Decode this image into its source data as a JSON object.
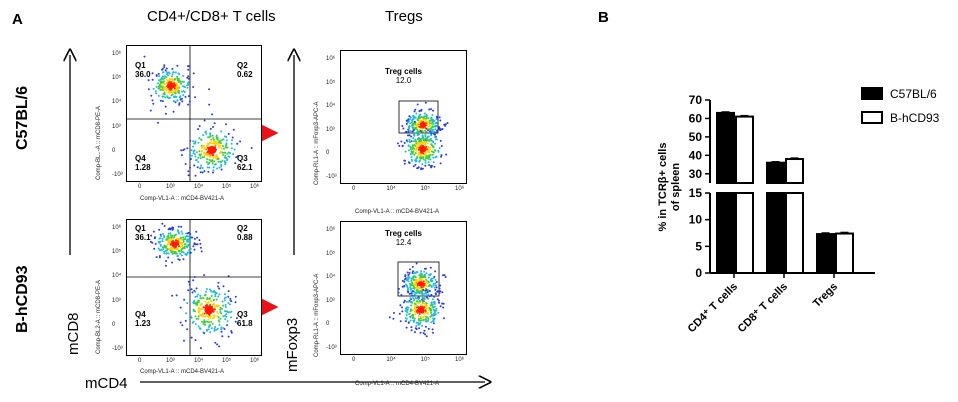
{
  "panelA": {
    "letter": "A",
    "col1_title": "CD4+/CD8+ T cells",
    "col2_title": "Tregs",
    "row1_label": "C57BL/6",
    "row2_label": "B-hCD93",
    "y_axis_word_1": "mCD8",
    "y_axis_word_2": "mFoxp3",
    "x_axis_word": "mCD4",
    "flow_plots": [
      {
        "q1_name": "Q1",
        "q1_value": "36.0",
        "q2_name": "Q2",
        "q2_value": "0.62",
        "q3_name": "Q3",
        "q3_value": "62.1",
        "q4_name": "Q4",
        "q4_value": "1.28",
        "y_axis_label": "Comp-BL..-A :: mCD8-PE-A",
        "x_axis_label": "Comp-VL1-A :: mCD4-BV421-A"
      },
      {
        "q1_name": "Q1",
        "q1_value": "36.1",
        "q2_name": "Q2",
        "q2_value": "0.88",
        "q3_name": "Q3",
        "q3_value": "61.8",
        "q4_name": "Q4",
        "q4_value": "1.23",
        "y_axis_label": "Comp-BL2-A :: mCD8-PE-A",
        "x_axis_label": "Comp-VL1-A :: mCD4-BV421-A"
      }
    ],
    "treg_plots": [
      {
        "gate_name": "Treg cells",
        "gate_value": "12.0",
        "y_axis_label": "Comp-RL1-A :: mFoxp3-APC-A",
        "x_axis_label": "Comp-VL1-A :: mCD4-BV421-A"
      },
      {
        "gate_name": "Treg cells",
        "gate_value": "12.4",
        "y_axis_label": "Comp-RL1-A :: mFoxp3-APC-A",
        "x_axis_label": "Comp-VL1-A :: mCD4-BV421-A"
      }
    ],
    "flow_x_ticks": [
      "0",
      "10³",
      "10⁴",
      "10⁵",
      "10⁶"
    ],
    "flow_y_ticks": [
      "10⁶",
      "10⁵",
      "10⁴",
      "10³",
      "0",
      "-10³"
    ],
    "treg_x_ticks": [
      "0",
      "10⁴",
      "10⁵",
      "10⁶"
    ],
    "treg_y_ticks": [
      "10⁶",
      "10⁵",
      "10⁴",
      "10³",
      "0",
      "-10³"
    ],
    "arrow_color": "#e8141a"
  },
  "chart_data": {
    "letter": "B",
    "type": "bar",
    "categories": [
      "CD4⁺ T cells",
      "CD8⁺ T cells",
      "Tregs"
    ],
    "series": [
      {
        "name": "C57BL/6",
        "values": [
          63,
          36,
          7.3
        ],
        "errors": [
          0.5,
          0.5,
          0.2
        ],
        "fill": "#000000"
      },
      {
        "name": "B-hCD93",
        "values": [
          61,
          38,
          7.4
        ],
        "errors": [
          0.5,
          0.5,
          0.2
        ],
        "fill": "#ffffff"
      }
    ],
    "ylabel_line1": "% in TCRβ+ cells",
    "ylabel_line2": "of spleen",
    "y_axis_broken": true,
    "y_lower_range": [
      0,
      15
    ],
    "y_upper_range": [
      25,
      70
    ],
    "y_lower_ticks": [
      "0",
      "5",
      "10",
      "15"
    ],
    "y_upper_ticks": [
      "30",
      "40",
      "50",
      "60",
      "70"
    ],
    "legend_position": "top-right",
    "grid": false
  }
}
